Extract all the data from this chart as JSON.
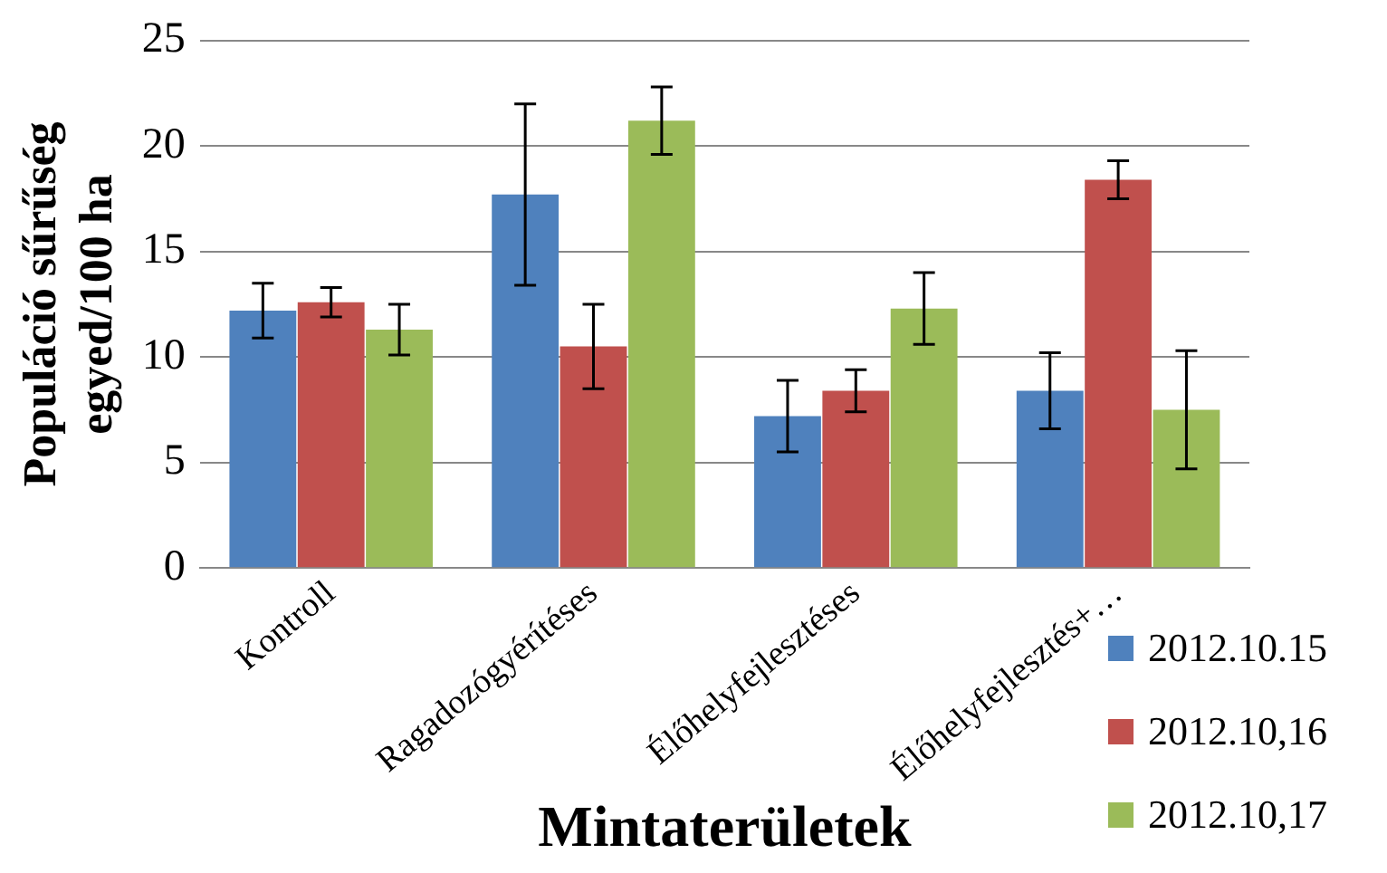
{
  "chart_data": {
    "type": "bar",
    "xlabel": "Mintaterületek",
    "ylabel": "Populáció sűrűség\negyed/100 ha",
    "categories": [
      "Kontroll",
      "Ragadozógyérítéses",
      "Élőhelyfejlesztéses",
      "Élőhelyfejlesztés+…"
    ],
    "series": [
      {
        "name": "2012.10.15",
        "color": "#4f81bd",
        "values": [
          12.2,
          17.7,
          7.2,
          8.4
        ],
        "errors": [
          1.3,
          4.3,
          1.7,
          1.8
        ]
      },
      {
        "name": "2012.10,16",
        "color": "#c0504d",
        "values": [
          12.6,
          10.5,
          8.4,
          18.4
        ],
        "errors": [
          0.7,
          2.0,
          1.0,
          0.9
        ]
      },
      {
        "name": "2012.10,17",
        "color": "#9bbb59",
        "values": [
          11.3,
          21.2,
          12.3,
          7.5
        ],
        "errors": [
          1.2,
          1.6,
          1.7,
          2.8
        ]
      }
    ],
    "ylim": [
      0,
      25
    ],
    "yticks": [
      0,
      5,
      10,
      15,
      20,
      25
    ],
    "grid": "y",
    "legend": "bottom right"
  }
}
